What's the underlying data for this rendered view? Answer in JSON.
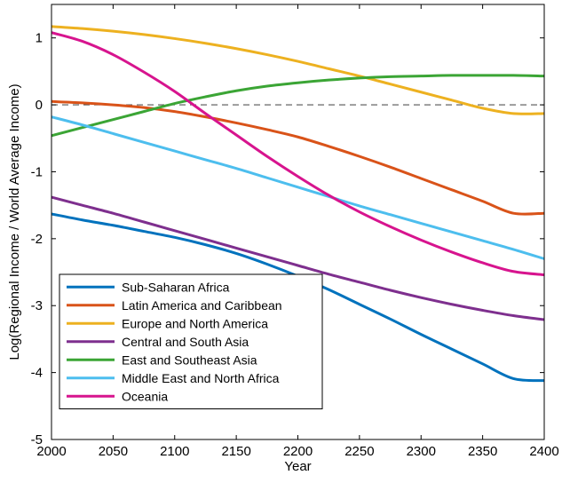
{
  "chart_data": {
    "type": "line",
    "title": "",
    "xlabel": "Year",
    "ylabel": "Log(Regional Income / World Average Income)",
    "xlim": [
      2000,
      2400
    ],
    "ylim": [
      -5,
      1.5
    ],
    "xticks": [
      2000,
      2050,
      2100,
      2150,
      2200,
      2250,
      2300,
      2350,
      2400
    ],
    "yticks": [
      -5,
      -4,
      -3,
      -2,
      -1,
      0,
      1
    ],
    "grid": false,
    "legend_position": "bottom-left",
    "reference_line": {
      "y": 0,
      "style": "dashed",
      "color": "#555555"
    },
    "x": [
      2000,
      2025,
      2050,
      2075,
      2100,
      2125,
      2150,
      2175,
      2200,
      2225,
      2250,
      2275,
      2300,
      2325,
      2350,
      2375,
      2400
    ],
    "series": [
      {
        "name": "Sub-Saharan Africa",
        "color": "#0072BD",
        "values": [
          -1.63,
          -1.72,
          -1.8,
          -1.89,
          -1.98,
          -2.09,
          -2.22,
          -2.38,
          -2.56,
          -2.76,
          -2.98,
          -3.2,
          -3.43,
          -3.65,
          -3.87,
          -4.09,
          -4.12
        ]
      },
      {
        "name": "Latin America and Caribbean",
        "color": "#D95319",
        "values": [
          0.05,
          0.03,
          0.0,
          -0.04,
          -0.1,
          -0.18,
          -0.27,
          -0.37,
          -0.48,
          -0.62,
          -0.77,
          -0.93,
          -1.1,
          -1.27,
          -1.44,
          -1.62,
          -1.62
        ]
      },
      {
        "name": "Europe and North America",
        "color": "#EDB120",
        "values": [
          1.17,
          1.14,
          1.1,
          1.05,
          0.99,
          0.92,
          0.84,
          0.75,
          0.65,
          0.54,
          0.43,
          0.31,
          0.19,
          0.07,
          -0.05,
          -0.13,
          -0.13
        ]
      },
      {
        "name": "Central and South Asia",
        "color": "#7E2F8E",
        "values": [
          -1.38,
          -1.5,
          -1.62,
          -1.75,
          -1.88,
          -2.01,
          -2.14,
          -2.27,
          -2.4,
          -2.53,
          -2.65,
          -2.77,
          -2.88,
          -2.98,
          -3.07,
          -3.15,
          -3.21
        ]
      },
      {
        "name": "East and Southeast Asia",
        "color": "#3BA535",
        "values": [
          -0.46,
          -0.34,
          -0.22,
          -0.1,
          0.02,
          0.12,
          0.21,
          0.28,
          0.33,
          0.37,
          0.4,
          0.42,
          0.43,
          0.44,
          0.44,
          0.44,
          0.43
        ]
      },
      {
        "name": "Middle East and North Africa",
        "color": "#4DBEEE",
        "values": [
          -0.18,
          -0.3,
          -0.43,
          -0.56,
          -0.69,
          -0.82,
          -0.95,
          -1.09,
          -1.23,
          -1.37,
          -1.51,
          -1.64,
          -1.77,
          -1.9,
          -2.03,
          -2.16,
          -2.3
        ]
      },
      {
        "name": "Oceania",
        "color": "#D7148E",
        "values": [
          1.08,
          0.95,
          0.75,
          0.49,
          0.2,
          -0.13,
          -0.45,
          -0.77,
          -1.07,
          -1.35,
          -1.6,
          -1.82,
          -2.02,
          -2.2,
          -2.36,
          -2.49,
          -2.54
        ]
      }
    ]
  }
}
